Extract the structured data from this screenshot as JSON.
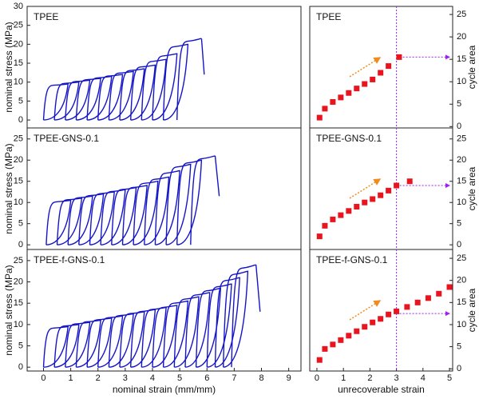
{
  "chart_data": [
    {
      "type": "line",
      "title": "TPEE",
      "ylabel": "nominal stress (MPa)",
      "color": "#1515c8",
      "x": [
        0.9,
        1.3,
        1.7,
        2.1,
        2.5,
        2.9,
        3.3,
        3.7,
        4.1,
        4.5,
        4.9,
        5.3,
        5.8,
        5.9
      ],
      "values": [
        9.5,
        10,
        10.5,
        11,
        11.5,
        12,
        12.8,
        13.5,
        14.5,
        16,
        17.5,
        20,
        21.5,
        12
      ],
      "xlim": [
        -0.6,
        9.45
      ],
      "ylim": [
        -2.1,
        30
      ],
      "yticks": [
        0,
        5,
        10,
        15,
        20,
        25,
        30
      ]
    },
    {
      "type": "scatter",
      "title": "TPEE",
      "ylabel": "cycle area",
      "color": "#e8141e",
      "x": [
        0.1,
        0.3,
        0.6,
        0.9,
        1.2,
        1.5,
        1.8,
        2.1,
        2.4,
        2.7,
        3.1
      ],
      "values": [
        2,
        4,
        5.5,
        6.5,
        7.5,
        8.5,
        9.5,
        10.5,
        12,
        13.5,
        15.5
      ],
      "reference_x": 3,
      "reference_y": 15.5,
      "xlim": [
        -0.27,
        5.12
      ],
      "ylim": [
        -0.3,
        26.8
      ],
      "yticks": [
        0,
        5,
        10,
        15,
        20,
        25
      ]
    },
    {
      "type": "line",
      "title": "TPEE-GNS-0.1",
      "ylabel": "nominal stress (MPa)",
      "color": "#1515c8",
      "x": [
        1.0,
        1.4,
        1.8,
        2.2,
        2.6,
        3.0,
        3.4,
        3.8,
        4.2,
        4.6,
        5.0,
        5.4,
        5.8,
        6.3,
        6.45
      ],
      "values": [
        10.5,
        11,
        11.5,
        12,
        12.5,
        13,
        13.5,
        14,
        15,
        16,
        17.5,
        19,
        20,
        21,
        11.5
      ],
      "xlim": [
        -0.6,
        9.45
      ],
      "ylim": [
        -1.1,
        27.6
      ],
      "yticks": [
        0,
        5,
        10,
        15,
        20,
        25
      ]
    },
    {
      "type": "scatter",
      "title": "TPEE-GNS-0.1",
      "ylabel": "cycle area",
      "color": "#e8141e",
      "x": [
        0.1,
        0.3,
        0.6,
        0.9,
        1.2,
        1.5,
        1.8,
        2.1,
        2.4,
        2.7,
        3.0,
        3.5
      ],
      "values": [
        2,
        4.5,
        6,
        7,
        8,
        9,
        10,
        10.8,
        11.7,
        12.8,
        14,
        15
      ],
      "reference_x": 3,
      "reference_y": 14,
      "xlim": [
        -0.27,
        5.12
      ],
      "ylim": [
        -1.1,
        27.6
      ],
      "yticks": [
        0,
        5,
        10,
        15,
        20,
        25
      ]
    },
    {
      "type": "line",
      "title": "TPEE-f-GNS-0.1",
      "ylabel": "nominal stress (MPa)",
      "xlabel": "nominal strain (mm/mm)",
      "color": "#1515c8",
      "x": [
        0.9,
        1.3,
        1.7,
        2.1,
        2.5,
        2.9,
        3.3,
        3.7,
        4.1,
        4.5,
        4.9,
        5.3,
        5.7,
        6.1,
        6.5,
        6.9,
        7.2,
        7.5,
        7.8,
        7.95
      ],
      "values": [
        9.5,
        10,
        10.5,
        11,
        11.5,
        12,
        12.5,
        13,
        13.5,
        14,
        14.5,
        15.5,
        16.5,
        17.5,
        18.5,
        19.5,
        21,
        22.5,
        24,
        13
      ],
      "xlim": [
        -0.6,
        9.45
      ],
      "ylim": [
        -0.9,
        27.6
      ],
      "xticks": [
        0,
        1,
        2,
        3,
        4,
        5,
        6,
        7,
        8,
        9
      ],
      "yticks": [
        0,
        5,
        10,
        15,
        20,
        25
      ]
    },
    {
      "type": "scatter",
      "title": "TPEE-f-GNS-0.1",
      "ylabel": "cycle area",
      "xlabel": "unrecoverable strain",
      "color": "#e8141e",
      "x": [
        0.1,
        0.3,
        0.6,
        0.9,
        1.2,
        1.5,
        1.8,
        2.1,
        2.4,
        2.7,
        3.0,
        3.4,
        3.8,
        4.2,
        4.6,
        5.0
      ],
      "values": [
        2,
        4.5,
        5.5,
        6.5,
        7.5,
        8.5,
        9.5,
        10.5,
        11.3,
        12.3,
        13,
        14,
        15,
        16,
        17,
        18.5
      ],
      "reference_x": 3,
      "reference_y": 12.5,
      "xlim": [
        -0.27,
        5.12
      ],
      "ylim": [
        -0.5,
        27
      ],
      "xticks": [
        0,
        1,
        2,
        3,
        4,
        5
      ],
      "yticks": [
        0,
        5,
        10,
        15,
        20,
        25
      ]
    }
  ]
}
